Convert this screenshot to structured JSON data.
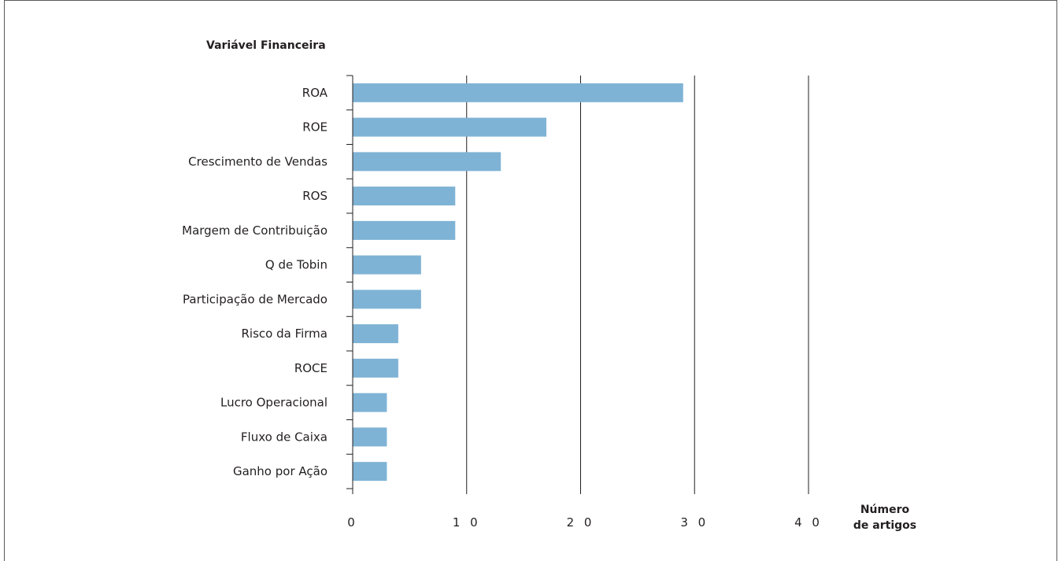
{
  "chart_data": {
    "type": "bar",
    "orientation": "horizontal",
    "ytitle": "Variável Financeira",
    "xlabel": [
      "Número",
      "de artigos"
    ],
    "categories": [
      "ROA",
      "ROE",
      "Crescimento de Vendas",
      "ROS",
      "Margem de Contribuição",
      "Q de Tobin",
      "Participação de Mercado",
      "Risco da Firma",
      "ROCE",
      "Lucro Operacional",
      "Fluxo de Caixa",
      "Ganho por Ação"
    ],
    "values": [
      29,
      17,
      13,
      9,
      9,
      6,
      6,
      4,
      4,
      3,
      3,
      3
    ],
    "xlim": [
      0,
      40
    ],
    "xticks": [
      0,
      10,
      20,
      30,
      40
    ],
    "xtick_labels": [
      "0",
      "1 0",
      "2 0",
      "3 0",
      "4 0"
    ],
    "vertical_grid": true,
    "bar_color": "#7fb3d5",
    "line_color": "#231f20"
  }
}
